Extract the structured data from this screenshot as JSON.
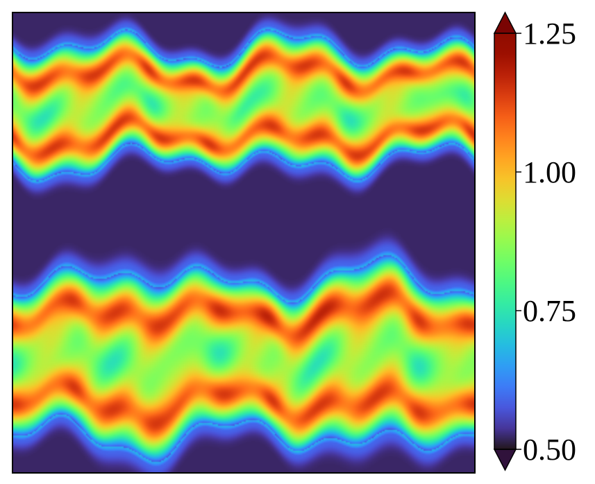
{
  "chart_data": {
    "type": "heatmap",
    "title": "",
    "xlabel": "",
    "ylabel": "",
    "colormap": "turbo",
    "vmin": 0.5,
    "vmax": 1.25,
    "extend": "both",
    "colorbar": {
      "ticks": [
        0.5,
        0.75,
        1.0,
        1.25
      ],
      "tick_labels": [
        "0.50",
        "0.75",
        "1.00",
        "1.25"
      ],
      "position": "right"
    },
    "axes_ticks": "none",
    "description_features": {
      "bands": [
        {
          "center_frac": 0.2,
          "halfwidth_frac": 0.13,
          "peak": 1.15
        },
        {
          "center_frac": 0.75,
          "halfwidth_frac": 0.18,
          "peak": 1.2
        }
      ],
      "background_value": 0.52
    }
  }
}
